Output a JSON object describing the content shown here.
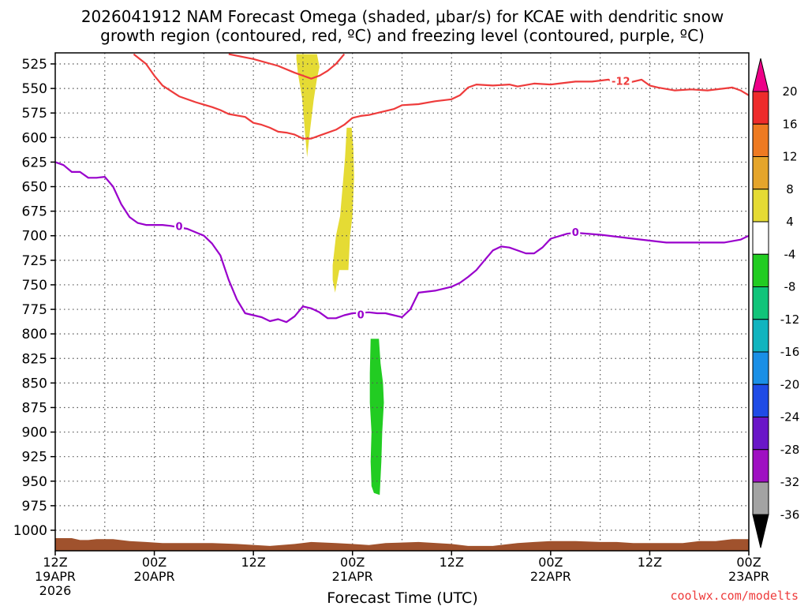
{
  "chart_data": {
    "type": "time-height",
    "title_line1": "2026041912 NAM Forecast Omega (shaded, μbar/s) for KCAE with dendritic snow",
    "title_line2": "growth region (contoured, red, ºC) and freezing level (contoured, purple, ºC)",
    "xlabel": "Forecast Time (UTC)",
    "credit": "coolwx.com/modelts",
    "x_hours_range": [
      0,
      84
    ],
    "p_range": [
      515,
      1020
    ],
    "y_ticks": [
      525,
      550,
      575,
      600,
      625,
      650,
      675,
      700,
      725,
      750,
      775,
      800,
      825,
      850,
      875,
      900,
      925,
      950,
      975,
      1000
    ],
    "x_ticks": [
      {
        "h": 0,
        "l1": "12Z",
        "l2": "19APR",
        "l3": "2026"
      },
      {
        "h": 12,
        "l1": "00Z",
        "l2": "20APR",
        "l3": ""
      },
      {
        "h": 24,
        "l1": "12Z",
        "l2": "",
        "l3": ""
      },
      {
        "h": 36,
        "l1": "00Z",
        "l2": "21APR",
        "l3": ""
      },
      {
        "h": 48,
        "l1": "12Z",
        "l2": "",
        "l3": ""
      },
      {
        "h": 60,
        "l1": "00Z",
        "l2": "22APR",
        "l3": ""
      },
      {
        "h": 72,
        "l1": "12Z",
        "l2": "",
        "l3": ""
      },
      {
        "h": 84,
        "l1": "00Z",
        "l2": "23APR",
        "l3": ""
      }
    ],
    "freezing_level": {
      "name": "0",
      "color": "#9900cc",
      "points": [
        [
          0,
          625
        ],
        [
          1,
          628
        ],
        [
          2,
          635
        ],
        [
          3,
          635
        ],
        [
          4,
          641
        ],
        [
          5,
          641
        ],
        [
          6,
          640
        ],
        [
          7,
          650
        ],
        [
          8,
          668
        ],
        [
          9,
          681
        ],
        [
          10,
          687
        ],
        [
          11,
          689
        ],
        [
          13,
          689
        ],
        [
          14,
          690
        ],
        [
          16,
          693
        ],
        [
          18,
          700
        ],
        [
          19,
          708
        ],
        [
          20,
          720
        ],
        [
          21,
          745
        ],
        [
          22,
          765
        ],
        [
          23,
          779
        ],
        [
          25,
          783
        ],
        [
          26,
          787
        ],
        [
          27,
          785
        ],
        [
          28,
          788
        ],
        [
          29,
          782
        ],
        [
          30,
          772
        ],
        [
          31,
          774
        ],
        [
          32,
          778
        ],
        [
          33,
          784
        ],
        [
          34,
          784
        ],
        [
          35,
          781
        ],
        [
          36,
          779
        ],
        [
          38,
          778
        ],
        [
          39,
          779
        ],
        [
          40,
          779
        ],
        [
          41,
          781
        ],
        [
          42,
          783
        ],
        [
          43,
          775
        ],
        [
          44,
          758
        ],
        [
          46,
          756
        ],
        [
          48,
          752
        ],
        [
          49,
          748
        ],
        [
          50,
          742
        ],
        [
          51,
          735
        ],
        [
          52,
          725
        ],
        [
          53,
          715
        ],
        [
          54,
          711
        ],
        [
          55,
          712
        ],
        [
          56,
          715
        ],
        [
          57,
          718
        ],
        [
          58,
          718
        ],
        [
          59,
          712
        ],
        [
          60,
          703
        ],
        [
          62,
          698
        ],
        [
          63,
          697
        ],
        [
          66,
          699
        ],
        [
          70,
          703
        ],
        [
          74,
          707
        ],
        [
          78,
          707
        ],
        [
          81,
          707
        ],
        [
          83,
          704
        ],
        [
          84,
          700
        ]
      ],
      "label_points": [
        [
          15,
          691
        ],
        [
          37,
          781
        ],
        [
          63,
          697
        ]
      ]
    },
    "dgz_isotherm": {
      "name": "-12",
      "color": "#ee3b3b",
      "upper": [
        [
          21,
          515
        ],
        [
          24,
          520
        ],
        [
          27,
          527
        ],
        [
          29,
          534
        ],
        [
          30,
          537
        ],
        [
          31,
          540
        ],
        [
          32,
          537
        ],
        [
          33,
          532
        ],
        [
          34,
          525
        ],
        [
          35,
          515
        ]
      ],
      "lower": [
        [
          9.5,
          515
        ],
        [
          11,
          525
        ],
        [
          12,
          537
        ],
        [
          13,
          547
        ],
        [
          15,
          558
        ],
        [
          17,
          564
        ],
        [
          19,
          569
        ],
        [
          20,
          572
        ],
        [
          21,
          576
        ],
        [
          23,
          579
        ],
        [
          24,
          585
        ],
        [
          25,
          587
        ],
        [
          26,
          590
        ],
        [
          27,
          594
        ],
        [
          28,
          595
        ],
        [
          29,
          597
        ],
        [
          30,
          601
        ],
        [
          31,
          601
        ],
        [
          32,
          598
        ],
        [
          34,
          592
        ],
        [
          35,
          587
        ],
        [
          36,
          580
        ],
        [
          37,
          578
        ],
        [
          38,
          577
        ],
        [
          39,
          575
        ],
        [
          40,
          573
        ],
        [
          41,
          571
        ],
        [
          42,
          567
        ],
        [
          44,
          566
        ],
        [
          46,
          563
        ],
        [
          48,
          561
        ],
        [
          49,
          557
        ],
        [
          50,
          549
        ],
        [
          51,
          546
        ],
        [
          53,
          547
        ],
        [
          55,
          546
        ],
        [
          56,
          548
        ],
        [
          58,
          545
        ],
        [
          60,
          546
        ],
        [
          62,
          544
        ],
        [
          63,
          543
        ],
        [
          65,
          543
        ],
        [
          67,
          541
        ],
        [
          68,
          545
        ],
        [
          69,
          545
        ],
        [
          71,
          541
        ],
        [
          72,
          547
        ],
        [
          73,
          549
        ],
        [
          75,
          552
        ],
        [
          77,
          551
        ],
        [
          79,
          552
        ],
        [
          81,
          550
        ],
        [
          82,
          549
        ],
        [
          83,
          552
        ],
        [
          84,
          557
        ]
      ],
      "label_points": [
        [
          68.5,
          543
        ]
      ]
    },
    "omega_regions": [
      {
        "color": "#e5db34",
        "points": [
          [
            29.2,
            515
          ],
          [
            31.7,
            515
          ],
          [
            32,
            528
          ],
          [
            31.7,
            540
          ],
          [
            31.3,
            562
          ],
          [
            30.9,
            590
          ],
          [
            30.5,
            620
          ],
          [
            30.2,
            590
          ],
          [
            29.9,
            560
          ],
          [
            29.4,
            535
          ],
          [
            29.2,
            520
          ]
        ]
      },
      {
        "color": "#e5db34",
        "points": [
          [
            35.3,
            590
          ],
          [
            35.9,
            590
          ],
          [
            36.1,
            610
          ],
          [
            36.2,
            640
          ],
          [
            36.0,
            680
          ],
          [
            35.7,
            700
          ],
          [
            35.5,
            735
          ],
          [
            34.4,
            735
          ],
          [
            33.9,
            758
          ],
          [
            33.6,
            745
          ],
          [
            33.6,
            730
          ],
          [
            34.0,
            700
          ],
          [
            34.5,
            680
          ],
          [
            34.8,
            650
          ],
          [
            35.1,
            620
          ]
        ]
      },
      {
        "color": "#22cc22",
        "points": [
          [
            38.2,
            805
          ],
          [
            39.2,
            805
          ],
          [
            39.4,
            830
          ],
          [
            39.7,
            850
          ],
          [
            39.8,
            870
          ],
          [
            39.6,
            900
          ],
          [
            39.5,
            930
          ],
          [
            39.3,
            964
          ],
          [
            38.6,
            962
          ],
          [
            38.3,
            955
          ],
          [
            38.2,
            930
          ],
          [
            38.3,
            900
          ],
          [
            38.1,
            870
          ],
          [
            38.1,
            840
          ]
        ]
      }
    ],
    "terrain": {
      "color": "#a0522d",
      "points": [
        [
          0,
          1008
        ],
        [
          2,
          1008
        ],
        [
          3,
          1010
        ],
        [
          4,
          1010
        ],
        [
          5,
          1009
        ],
        [
          7,
          1009
        ],
        [
          9,
          1011
        ],
        [
          11,
          1012
        ],
        [
          13,
          1013
        ],
        [
          15,
          1013
        ],
        [
          17,
          1013
        ],
        [
          19,
          1013
        ],
        [
          22,
          1014
        ],
        [
          26,
          1016
        ],
        [
          29,
          1014
        ],
        [
          31,
          1012
        ],
        [
          34,
          1013
        ],
        [
          36,
          1014
        ],
        [
          38,
          1015
        ],
        [
          40,
          1013
        ],
        [
          44,
          1012
        ],
        [
          48,
          1014
        ],
        [
          50,
          1016
        ],
        [
          53,
          1016
        ],
        [
          56,
          1013
        ],
        [
          58,
          1012
        ],
        [
          60,
          1011
        ],
        [
          63,
          1011
        ],
        [
          66,
          1012
        ],
        [
          68,
          1012
        ],
        [
          70,
          1013
        ],
        [
          73,
          1013
        ],
        [
          76,
          1013
        ],
        [
          78,
          1011
        ],
        [
          80,
          1011
        ],
        [
          82,
          1009
        ],
        [
          84,
          1009
        ]
      ]
    },
    "colorbar": {
      "labels": [
        "20",
        "16",
        "12",
        "8",
        "4",
        "-4",
        "-8",
        "-12",
        "-16",
        "-20",
        "-24",
        "-28",
        "-32",
        "-36"
      ],
      "top_color": "#ee0088",
      "bottom_color": "#000000",
      "colors": [
        "#ee2b2b",
        "#ee7a22",
        "#e5a52b",
        "#e5db34",
        "#ffffff",
        "#22cc22",
        "#11c47a",
        "#11b4bf",
        "#1a8fe6",
        "#1f4be6",
        "#6a16c8",
        "#9f10c2",
        "#a3a3a3"
      ]
    }
  }
}
